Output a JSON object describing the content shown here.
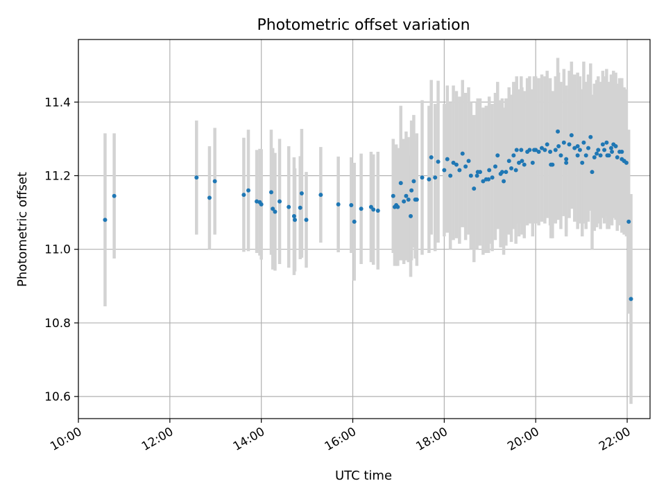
{
  "chart_data": {
    "type": "scatter",
    "title": "Photometric offset variation",
    "xlabel": "UTC time",
    "ylabel": "Photometric offset",
    "xlim": [
      "10:00",
      "22:30"
    ],
    "ylim": [
      10.54,
      11.57
    ],
    "x_ticks": [
      "10:00",
      "12:00",
      "14:00",
      "16:00",
      "18:00",
      "20:00",
      "22:00"
    ],
    "y_ticks": [
      "10.6",
      "10.8",
      "11.0",
      "11.2",
      "11.4"
    ],
    "grid": true,
    "colors": {
      "points": "#1f77b4",
      "error_bars": "#d3d3d3",
      "grid": "#b0b0b0"
    },
    "series": [
      {
        "x": [
          "10:35",
          "10:47",
          "12:35",
          "12:52",
          "12:59",
          "13:37",
          "13:43",
          "13:54",
          "13:58",
          "14:00",
          "14:13",
          "14:15",
          "14:18",
          "14:24",
          "14:36",
          "14:43",
          "14:44",
          "14:51",
          "14:53",
          "14:59",
          "15:18",
          "15:41",
          "15:58",
          "16:02",
          "16:11",
          "16:24",
          "16:27",
          "16:33",
          "16:53",
          "16:55",
          "16:57",
          "16:59",
          "17:03",
          "17:07",
          "17:10",
          "17:13",
          "17:16",
          "17:17",
          "17:20",
          "17:22",
          "17:24",
          "17:31",
          "17:40",
          "17:43",
          "17:48",
          "17:52",
          "18:00",
          "18:04",
          "18:08",
          "18:12",
          "18:16",
          "18:20",
          "18:24",
          "18:28",
          "18:32",
          "18:35",
          "18:39",
          "18:43",
          "18:47",
          "18:51",
          "18:55",
          "18:59",
          "19:03",
          "19:07",
          "19:10",
          "19:14",
          "19:18",
          "19:21",
          "19:25",
          "19:28",
          "19:31",
          "19:34",
          "19:38",
          "19:41",
          "19:45",
          "19:49",
          "19:52",
          "19:56",
          "20:00",
          "20:04",
          "20:08",
          "20:12",
          "20:15",
          "20:19",
          "20:22",
          "20:26",
          "20:29",
          "20:33",
          "20:37",
          "20:40",
          "20:44",
          "20:47",
          "20:51",
          "20:55",
          "20:58",
          "21:01",
          "21:03",
          "21:06",
          "21:09",
          "21:12",
          "21:14",
          "21:17",
          "21:20",
          "21:22",
          "21:25",
          "21:28",
          "21:30",
          "21:33",
          "21:36",
          "21:39",
          "21:42",
          "21:45",
          "21:47",
          "21:50",
          "21:53",
          "21:56",
          "21:59",
          "22:02",
          "22:05",
          "21:40",
          "21:34",
          "20:40",
          "20:55",
          "19:58",
          "19:42",
          "19:35",
          "20:30",
          "20:20",
          "18:58",
          "19:16",
          "18:44",
          "21:53",
          "21:56"
        ],
        "y": [
          11.08,
          11.145,
          11.195,
          11.14,
          11.185,
          11.148,
          11.16,
          11.13,
          11.128,
          11.122,
          11.155,
          11.11,
          11.102,
          11.13,
          11.115,
          11.09,
          11.08,
          11.113,
          11.152,
          11.08,
          11.148,
          11.122,
          11.12,
          11.075,
          11.11,
          11.115,
          11.108,
          11.105,
          11.145,
          11.115,
          11.12,
          11.115,
          11.18,
          11.13,
          11.145,
          11.135,
          11.09,
          11.16,
          11.185,
          11.135,
          11.135,
          11.195,
          11.19,
          11.25,
          11.195,
          11.238,
          11.215,
          11.245,
          11.2,
          11.235,
          11.23,
          11.215,
          11.26,
          11.225,
          11.24,
          11.2,
          11.165,
          11.2,
          11.21,
          11.185,
          11.19,
          11.215,
          11.195,
          11.225,
          11.255,
          11.205,
          11.185,
          11.21,
          11.24,
          11.22,
          11.255,
          11.215,
          11.235,
          11.27,
          11.23,
          11.265,
          11.27,
          11.235,
          11.27,
          11.265,
          11.275,
          11.27,
          11.285,
          11.265,
          11.23,
          11.27,
          11.32,
          11.255,
          11.29,
          11.245,
          11.285,
          11.31,
          11.275,
          11.255,
          11.27,
          11.235,
          11.29,
          11.255,
          11.275,
          11.305,
          11.21,
          11.25,
          11.26,
          11.27,
          11.255,
          11.285,
          11.27,
          11.29,
          11.255,
          11.275,
          11.285,
          11.28,
          11.25,
          11.265,
          11.245,
          11.24,
          11.235,
          11.075,
          10.865,
          11.265,
          11.255,
          11.235,
          11.28,
          11.27,
          11.24,
          11.27,
          11.28,
          11.23,
          11.19,
          11.21,
          11.21,
          11.265,
          11.24
        ],
        "err": [
          0.235,
          0.17,
          0.155,
          0.14,
          0.145,
          0.155,
          0.165,
          0.14,
          0.145,
          0.15,
          0.17,
          0.165,
          0.16,
          0.17,
          0.165,
          0.16,
          0.14,
          0.14,
          0.175,
          0.13,
          0.13,
          0.13,
          0.13,
          0.16,
          0.15,
          0.15,
          0.15,
          0.16,
          0.155,
          0.16,
          0.165,
          0.16,
          0.21,
          0.17,
          0.175,
          0.17,
          0.165,
          0.19,
          0.18,
          0.16,
          0.18,
          0.21,
          0.2,
          0.21,
          0.2,
          0.22,
          0.18,
          0.2,
          0.2,
          0.21,
          0.2,
          0.2,
          0.2,
          0.2,
          0.2,
          0.2,
          0.2,
          0.2,
          0.2,
          0.2,
          0.2,
          0.2,
          0.2,
          0.2,
          0.2,
          0.2,
          0.2,
          0.2,
          0.2,
          0.2,
          0.2,
          0.2,
          0.2,
          0.2,
          0.2,
          0.2,
          0.2,
          0.2,
          0.2,
          0.2,
          0.2,
          0.2,
          0.2,
          0.2,
          0.2,
          0.2,
          0.2,
          0.2,
          0.2,
          0.2,
          0.2,
          0.2,
          0.2,
          0.2,
          0.2,
          0.2,
          0.22,
          0.2,
          0.2,
          0.2,
          0.21,
          0.2,
          0.2,
          0.2,
          0.2,
          0.2,
          0.2,
          0.2,
          0.2,
          0.2,
          0.2,
          0.2,
          0.2,
          0.2,
          0.2,
          0.2,
          0.2,
          0.25,
          0.285,
          0.2,
          0.2,
          0.2,
          0.2,
          0.2,
          0.2,
          0.2,
          0.2,
          0.2,
          0.2,
          0.2,
          0.2,
          0.2,
          0.2
        ]
      }
    ]
  }
}
